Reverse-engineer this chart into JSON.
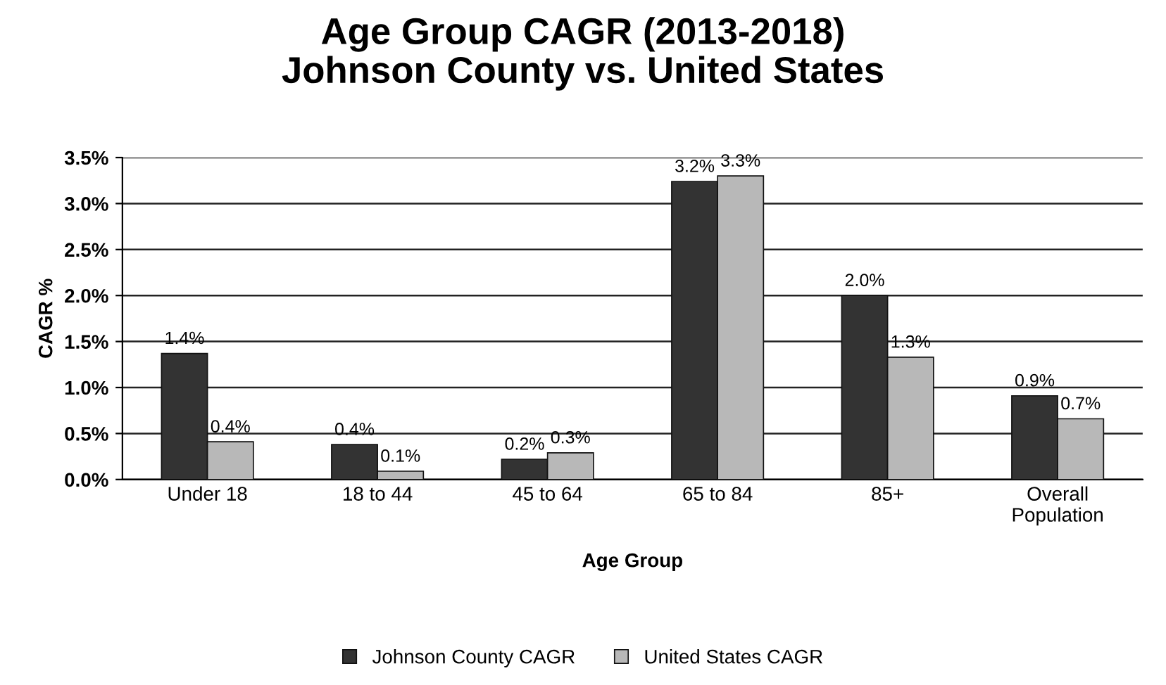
{
  "chart_data": {
    "type": "bar",
    "title": "Age Group CAGR (2013-2018)\nJohnson County vs. United States",
    "xlabel": "Age Group",
    "ylabel": "CAGR %",
    "categories": [
      "Under 18",
      "18 to 44",
      "45 to 64",
      "65 to 84",
      "85+",
      "Overall\nPopulation"
    ],
    "series": [
      {
        "name": "Johnson County CAGR",
        "color": "#333333",
        "values": [
          1.37,
          0.38,
          0.22,
          3.24,
          2.0,
          0.91
        ],
        "value_labels": [
          "1.4%",
          "0.4%",
          "0.2%",
          "3.2%",
          "2.0%",
          "0.9%"
        ]
      },
      {
        "name": "United States CAGR",
        "color": "#b8b8b8",
        "values": [
          0.41,
          0.09,
          0.29,
          3.3,
          1.33,
          0.66
        ],
        "value_labels": [
          "0.4%",
          "0.1%",
          "0.3%",
          "3.3%",
          "1.3%",
          "0.7%"
        ]
      }
    ],
    "ylim": [
      0,
      3.5
    ],
    "yticks": [
      {
        "value": 0,
        "label": "0.0%"
      },
      {
        "value": 0.5,
        "label": "0.5%"
      },
      {
        "value": 1,
        "label": "1.0%"
      },
      {
        "value": 1.5,
        "label": "1.5%"
      },
      {
        "value": 2,
        "label": "2.0%"
      },
      {
        "value": 2.5,
        "label": "2.5%"
      },
      {
        "value": 3,
        "label": "3.0%"
      },
      {
        "value": 3.5,
        "label": "3.5%"
      }
    ],
    "grid": "y",
    "legend": "bottom"
  }
}
